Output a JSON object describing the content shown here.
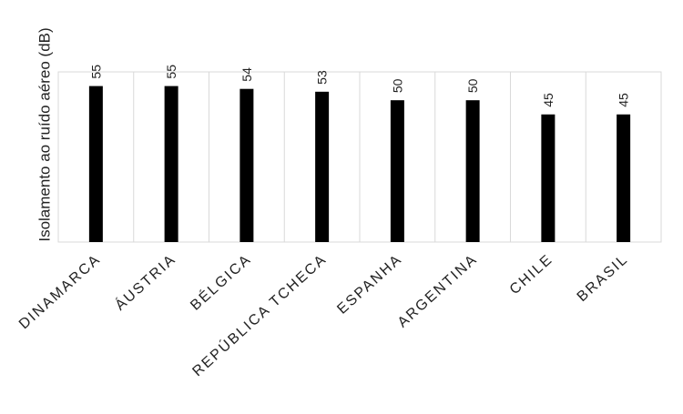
{
  "chart_data": {
    "type": "bar",
    "y_label": "Isolamento ao ruído aéreo (dB)",
    "categories": [
      "DINAMARCA",
      "ÁUSTRIA",
      "BÉLGICA",
      "REPÚBLICA TCHECA",
      "ESPANHA",
      "ARGENTINA",
      "CHILE",
      "BRASIL"
    ],
    "values": [
      55,
      55,
      54,
      53,
      50,
      50,
      45,
      45
    ],
    "color": "#000000",
    "ylim": [
      0,
      60
    ],
    "data_labels": true
  }
}
